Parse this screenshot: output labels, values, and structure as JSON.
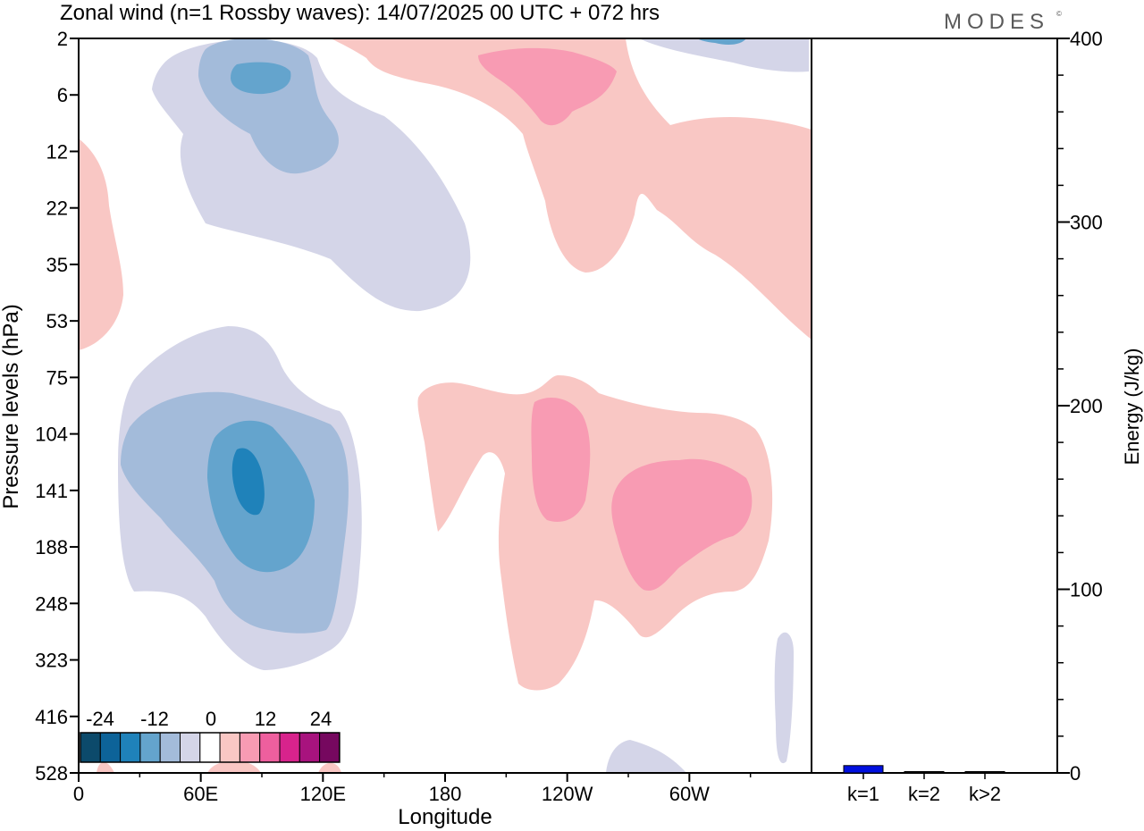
{
  "header": {
    "title": "Zonal wind (n=1 Rossby waves):  14/07/2025  00 UTC  + 072 hrs",
    "brand": "MODES",
    "brand_mark": "©"
  },
  "colors": {
    "neg3": "#1f82ba",
    "neg2": "#64a4cd",
    "neg1": "#a3bbda",
    "neg0": "#d4d5e8",
    "pos0": "#f9c7c4",
    "pos1": "#f89bb3",
    "bar": "#0010e0"
  },
  "chart_data": [
    {
      "type": "heatmap",
      "title": "Zonal wind (n=1 Rossby waves):  14/07/2025  00 UTC  + 072 hrs",
      "xlabel": "Longitude",
      "ylabel": "Pressure levels (hPa)",
      "x_ticks": [
        "0",
        "60E",
        "120E",
        "180",
        "120W",
        "60W"
      ],
      "y_ticks": [
        "2",
        "6",
        "12",
        "22",
        "35",
        "53",
        "75",
        "104",
        "141",
        "188",
        "248",
        "323",
        "416",
        "528"
      ],
      "colorbar": {
        "tick_labels": [
          "-24",
          "-12",
          "0",
          "12",
          "24"
        ],
        "colors": [
          "#0c4a6b",
          "#0d6399",
          "#1f82ba",
          "#64a4cd",
          "#a3bbda",
          "#d4d5e8",
          "#ffffff",
          "#f9c7c4",
          "#f89bb3",
          "#ee5f9e",
          "#d8238c",
          "#a8137e",
          "#76085f"
        ]
      },
      "contour_regions": [
        {
          "sign": "negative",
          "level": 1,
          "lon": [
            40,
            120
          ],
          "pressure_hPa": [
            2,
            53
          ]
        },
        {
          "sign": "negative",
          "level": 3,
          "lon": [
            75,
            100
          ],
          "pressure_hPa": [
            2,
            12
          ]
        },
        {
          "sign": "positive",
          "level": 1,
          "lon": [
            120,
            360
          ],
          "pressure_hPa": [
            2,
            53
          ]
        },
        {
          "sign": "positive",
          "level": 2,
          "lon": [
            195,
            240
          ],
          "pressure_hPa": [
            2,
            8
          ]
        },
        {
          "sign": "negative",
          "level": 1,
          "lon": [
            15,
            140
          ],
          "pressure_hPa": [
            53,
            360
          ]
        },
        {
          "sign": "negative",
          "level": 4,
          "lon": [
            73,
            92
          ],
          "pressure_hPa": [
            110,
            170
          ]
        },
        {
          "sign": "positive",
          "level": 1,
          "lon": [
            170,
            340
          ],
          "pressure_hPa": [
            75,
            400
          ]
        },
        {
          "sign": "positive",
          "level": 2,
          "lon": [
            268,
            330
          ],
          "pressure_hPa": [
            130,
            230
          ]
        }
      ]
    },
    {
      "type": "bar",
      "ylabel": "Energy (J/kg)",
      "categories": [
        "k=1",
        "k=2",
        "k>2"
      ],
      "values": [
        4,
        0.4,
        0.6
      ],
      "ylim": [
        0,
        400
      ],
      "y_ticks": [
        "0",
        "100",
        "200",
        "300",
        "400"
      ]
    }
  ]
}
